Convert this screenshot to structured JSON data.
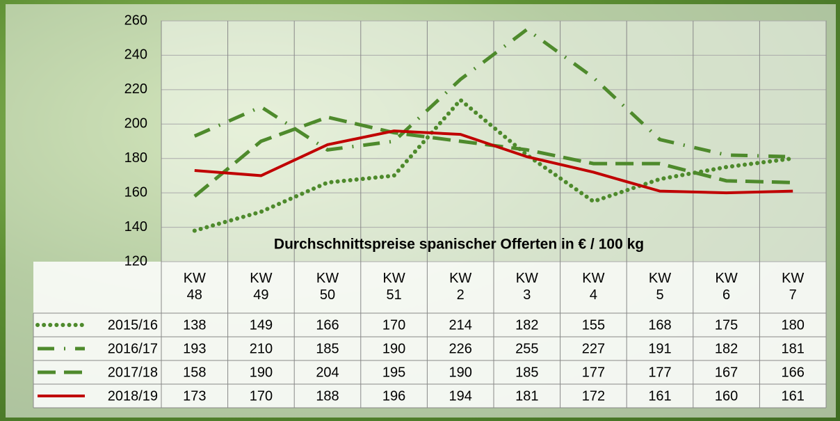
{
  "chart_data": {
    "type": "line",
    "annotation": "Durchschnittspreise spanischer Offerten in € / 100 kg",
    "categories": [
      "KW 48",
      "KW 49",
      "KW 50",
      "KW 51",
      "KW 2",
      "KW 3",
      "KW 4",
      "KW 5",
      "KW 6",
      "KW 7"
    ],
    "ylim": [
      120,
      260
    ],
    "yticks": [
      120,
      140,
      160,
      180,
      200,
      220,
      240,
      260
    ],
    "grid": true,
    "series": [
      {
        "name": "2015/16",
        "color": "#4e8a2c",
        "dash": "dotted",
        "values": [
          138,
          149,
          166,
          170,
          214,
          182,
          155,
          168,
          175,
          180
        ]
      },
      {
        "name": "2016/17",
        "color": "#4e8a2c",
        "dash": "dashdot",
        "values": [
          193,
          210,
          185,
          190,
          226,
          255,
          227,
          191,
          182,
          181
        ]
      },
      {
        "name": "2017/18",
        "color": "#4e8a2c",
        "dash": "dashed",
        "values": [
          158,
          190,
          204,
          195,
          190,
          185,
          177,
          177,
          167,
          166
        ]
      },
      {
        "name": "2018/19",
        "color": "#c00000",
        "dash": "solid",
        "values": [
          173,
          170,
          188,
          196,
          194,
          181,
          172,
          161,
          160,
          161
        ]
      }
    ]
  }
}
